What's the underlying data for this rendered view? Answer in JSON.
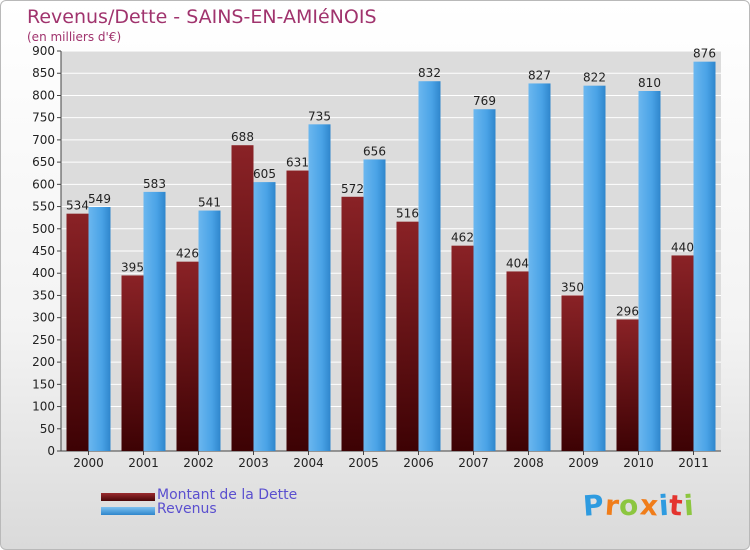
{
  "chart_data": {
    "type": "bar",
    "title": "Revenus/Dette - SAINS-EN-AMIéNOIS",
    "subtitle": "(en milliers d'€)",
    "xlabel": "",
    "ylabel": "",
    "ylim": [
      0,
      900
    ],
    "ytick_step": 50,
    "grid": true,
    "categories": [
      "2000",
      "2001",
      "2002",
      "2003",
      "2004",
      "2005",
      "2006",
      "2007",
      "2008",
      "2009",
      "2010",
      "2011"
    ],
    "series": [
      {
        "name": "Montant de la Dette",
        "color": "#7a1416",
        "values": [
          534,
          395,
          426,
          688,
          631,
          572,
          516,
          462,
          404,
          350,
          296,
          440
        ]
      },
      {
        "name": "Revenus",
        "color": "#4aa3e6",
        "values": [
          549,
          583,
          541,
          605,
          735,
          656,
          832,
          769,
          827,
          822,
          810,
          876
        ]
      }
    ],
    "legend_position": "bottom-left"
  },
  "logo": {
    "text": "Proxiti",
    "letter_colors": [
      "#2e9be0",
      "#f07d1a",
      "#8cc63f",
      "#f07d1a",
      "#2e9be0",
      "#e4342f",
      "#8cc63f"
    ]
  }
}
